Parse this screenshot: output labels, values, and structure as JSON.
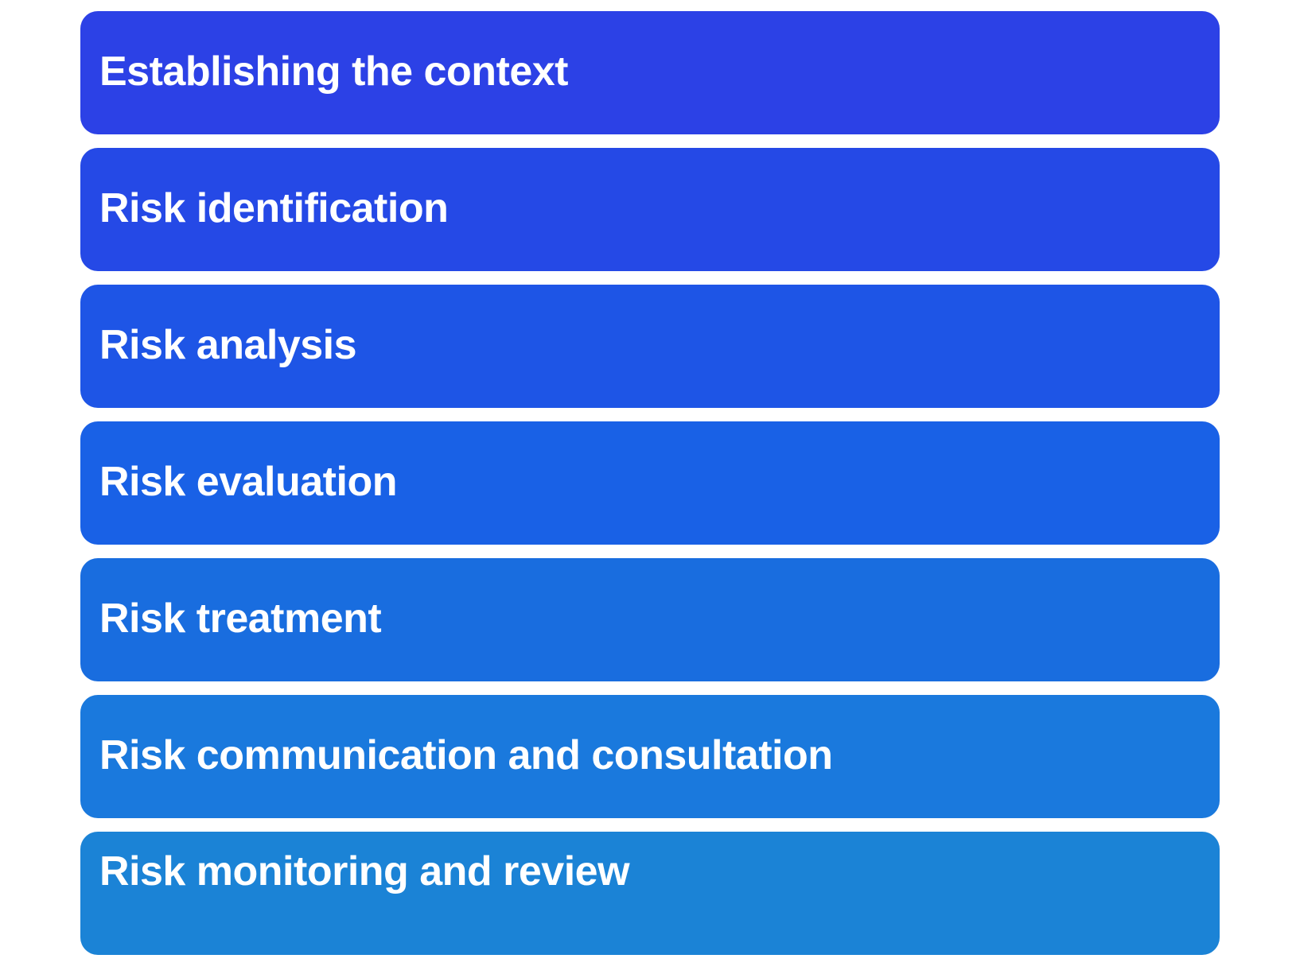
{
  "steps": [
    {
      "label": "Establishing the context",
      "color": "#2c41e6"
    },
    {
      "label": "Risk identification",
      "color": "#2549e6"
    },
    {
      "label": "Risk analysis",
      "color": "#1e55e6"
    },
    {
      "label": "Risk evaluation",
      "color": "#1961e6"
    },
    {
      "label": "Risk treatment",
      "color": "#196ddf"
    },
    {
      "label": "Risk communication and consultation",
      "color": "#1a79dd"
    },
    {
      "label": "Risk monitoring and review",
      "color": "#1b83d6"
    }
  ]
}
